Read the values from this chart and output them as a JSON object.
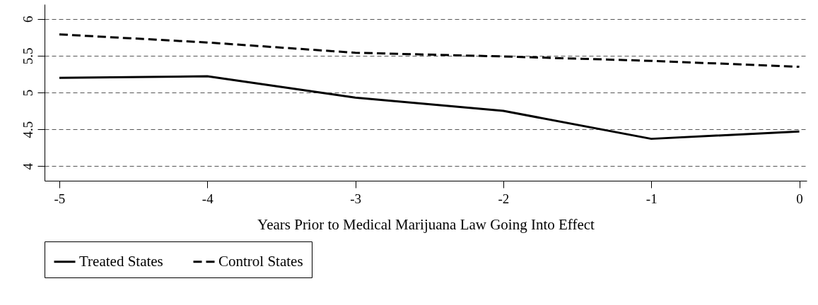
{
  "chart_data": {
    "type": "line",
    "xlabel": "Years Prior to Medical Marijuana Law Going Into Effect",
    "x": [
      -5,
      -4,
      -3,
      -2,
      -1,
      0
    ],
    "series": [
      {
        "name": "Treated States",
        "color": "#000000",
        "line_style": "solid",
        "values": [
          5.2,
          5.22,
          4.93,
          4.75,
          4.37,
          4.47
        ]
      },
      {
        "name": "Control States",
        "color": "#000000",
        "line_style": "dashed",
        "values": [
          5.79,
          5.68,
          5.54,
          5.49,
          5.43,
          5.35
        ]
      }
    ],
    "xlim": [
      -5.1,
      0.05
    ],
    "xticks": [
      -5,
      -4,
      -3,
      -2,
      -1,
      0
    ],
    "ylim": [
      3.8,
      6.2
    ],
    "yticks": [
      4,
      4.5,
      5,
      5.5,
      6
    ],
    "grid": "y",
    "legend": "bottom",
    "marker": "none"
  }
}
